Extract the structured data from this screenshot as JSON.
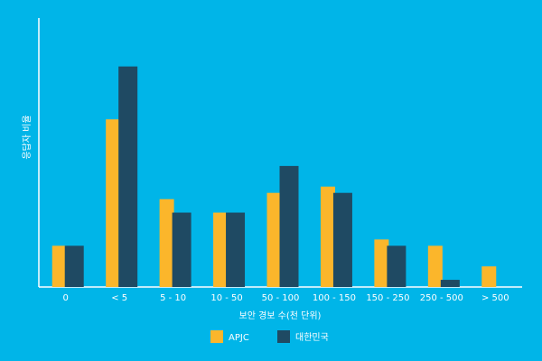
{
  "chart_data": {
    "type": "bar",
    "x_label": "보안 경보 수(천 단위)",
    "y_label": "응답자 비율",
    "categories": [
      "0",
      "< 5",
      "5 - 10",
      "10 - 50",
      "50 - 100",
      "100 - 150",
      "150 - 250",
      "250 - 500",
      "> 500"
    ],
    "series": [
      {
        "name": "APJC",
        "color": "#fbb62b",
        "values": [
          46,
          187,
          98,
          83,
          105,
          112,
          53,
          46,
          23
        ]
      },
      {
        "name": "대한민국",
        "color": "#1f4a63",
        "values": [
          46,
          246,
          83,
          83,
          135,
          105,
          46,
          8,
          null
        ]
      }
    ],
    "ylim": [
      0,
      300
    ]
  }
}
